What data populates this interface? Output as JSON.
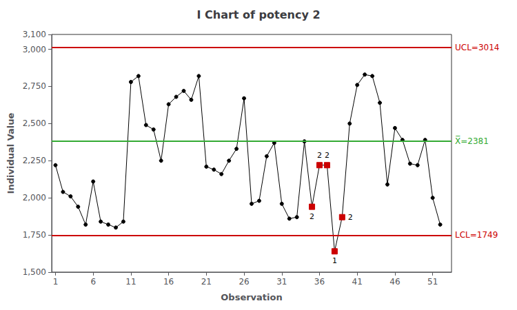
{
  "chart_data": {
    "type": "line",
    "title": "I Chart of potency 2",
    "xlabel": "Observation",
    "ylabel": "Individual Value",
    "x": [
      1,
      2,
      3,
      4,
      5,
      6,
      7,
      8,
      9,
      10,
      11,
      12,
      13,
      14,
      15,
      16,
      17,
      18,
      19,
      20,
      21,
      22,
      23,
      24,
      25,
      26,
      27,
      28,
      29,
      30,
      31,
      32,
      33,
      34,
      35,
      36,
      37,
      38,
      39,
      40,
      41,
      42,
      43,
      44,
      45,
      46,
      47,
      48,
      49,
      50,
      51,
      52
    ],
    "values": [
      2220,
      2040,
      2010,
      1940,
      1820,
      2110,
      1840,
      1820,
      1800,
      1840,
      2780,
      2820,
      2490,
      2460,
      2250,
      2630,
      2680,
      2720,
      2660,
      2820,
      2210,
      2190,
      2160,
      2250,
      2330,
      2670,
      1960,
      1980,
      2280,
      2370,
      1960,
      1860,
      1870,
      2380,
      1940,
      2220,
      2220,
      1640,
      1870,
      2500,
      2760,
      2830,
      2820,
      2640,
      2090,
      2470,
      2390,
      2230,
      2220,
      2390,
      2000,
      1820
    ],
    "color": "#000000",
    "marker": "circle",
    "xlim": [
      0.5,
      53.5
    ],
    "xticks": [
      1,
      6,
      11,
      16,
      21,
      26,
      31,
      36,
      41,
      46,
      51
    ],
    "ylim": [
      1500,
      3100
    ],
    "yticks": [
      1500,
      1750,
      2000,
      2250,
      2500,
      2750,
      3000
    ],
    "grid": false,
    "flagged": {
      "x": [
        35,
        36,
        37,
        38,
        39
      ],
      "labels": [
        "2",
        "2",
        "2",
        "1",
        "2"
      ],
      "color": "#cc0000",
      "marker": "square"
    },
    "reference_lines": [
      {
        "value": 3014,
        "label": "UCL=3014",
        "color": "#cc0000"
      },
      {
        "value": 1749,
        "label": "LCL=1749",
        "color": "#cc0000"
      },
      {
        "value": 2381,
        "label": "X̅=2381",
        "color": "#33aa33"
      }
    ]
  }
}
